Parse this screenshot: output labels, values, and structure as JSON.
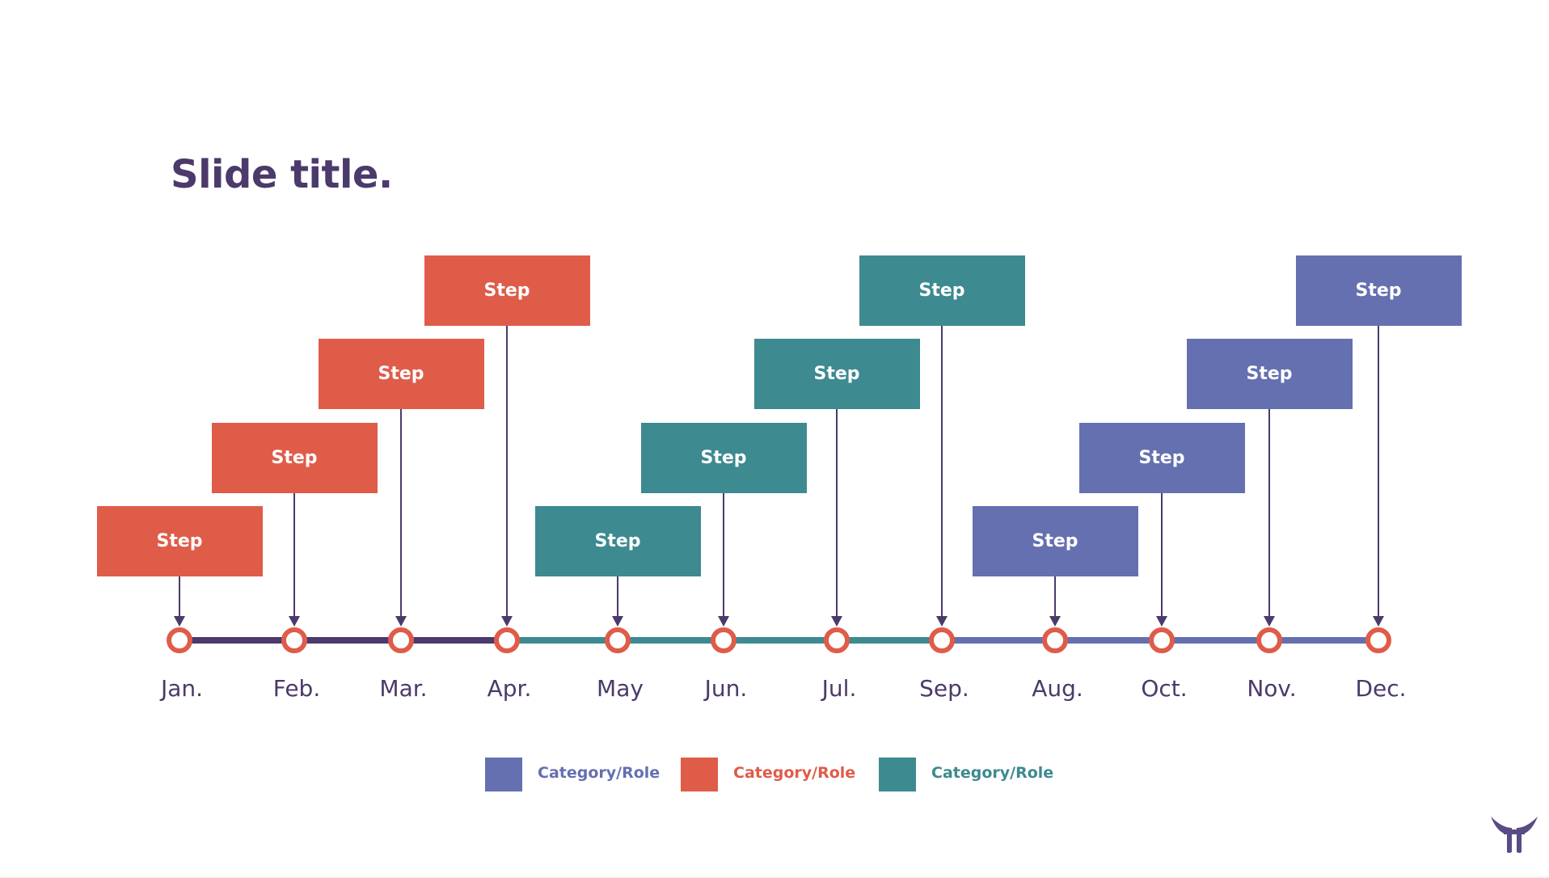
{
  "slide": {
    "title": "Slide title."
  },
  "colors": {
    "title": "#4b3a6b",
    "purple": "#6470b0",
    "red": "#df5c49",
    "teal": "#3d8a90",
    "connector": "#4b3a6b",
    "month_text": "#4b3a6b",
    "node_ring": "#df5c49"
  },
  "timeline": {
    "months": [
      "Jan.",
      "Feb.",
      "Mar.",
      "Apr.",
      "May",
      "Jun.",
      "Jul.",
      "Sep.",
      "Aug.",
      "Oct.",
      "Nov.",
      "Dec."
    ],
    "steps": [
      {
        "label": "Step",
        "category": "red",
        "level": 1
      },
      {
        "label": "Step",
        "category": "red",
        "level": 2
      },
      {
        "label": "Step",
        "category": "red",
        "level": 3
      },
      {
        "label": "Step",
        "category": "red",
        "level": 4
      },
      {
        "label": "Step",
        "category": "teal",
        "level": 1
      },
      {
        "label": "Step",
        "category": "teal",
        "level": 2
      },
      {
        "label": "Step",
        "category": "teal",
        "level": 3
      },
      {
        "label": "Step",
        "category": "teal",
        "level": 4
      },
      {
        "label": "Step",
        "category": "purple",
        "level": 1
      },
      {
        "label": "Step",
        "category": "purple",
        "level": 2
      },
      {
        "label": "Step",
        "category": "purple",
        "level": 3
      },
      {
        "label": "Step",
        "category": "purple",
        "level": 4
      }
    ]
  },
  "legend": [
    {
      "label": "Category/Role",
      "color": "#6470b0"
    },
    {
      "label": "Category/Role",
      "color": "#df5c49"
    },
    {
      "label": "Category/Role",
      "color": "#3d8a90"
    }
  ],
  "logo": {
    "icon": "brand-logo-icon",
    "color": "#5a4a85"
  }
}
